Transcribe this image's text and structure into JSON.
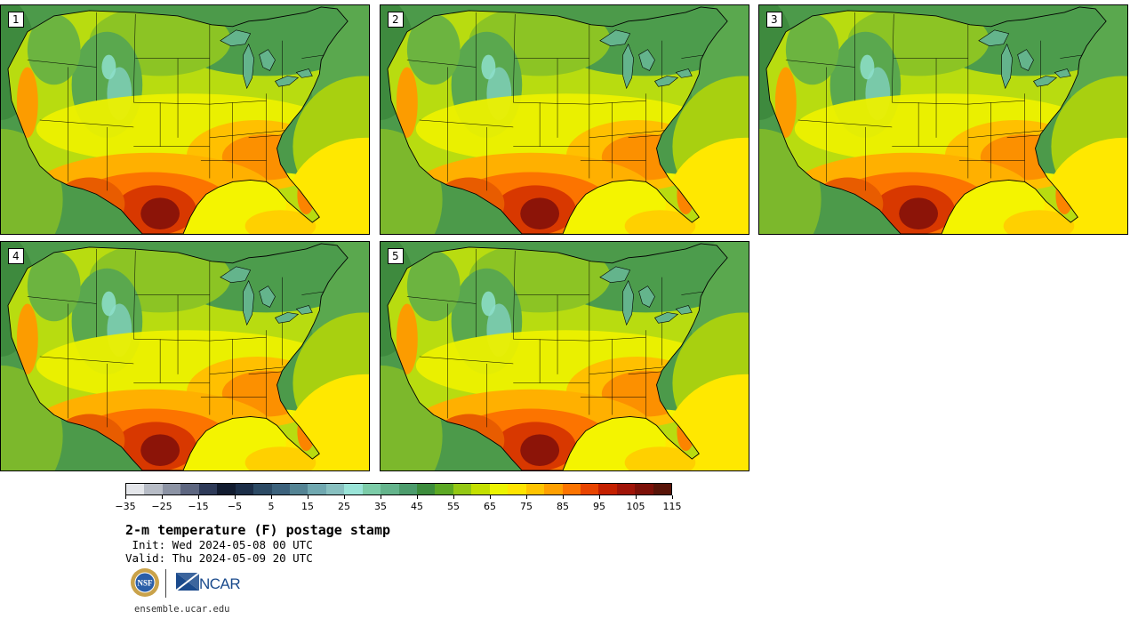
{
  "panels": [
    {
      "label": "1"
    },
    {
      "label": "2"
    },
    {
      "label": "3"
    },
    {
      "label": "4"
    },
    {
      "label": "5"
    }
  ],
  "colorbar": {
    "colors": [
      "#e4e6ea",
      "#b7bcc6",
      "#8c93a4",
      "#5d6680",
      "#2e3a58",
      "#121c30",
      "#1c2e48",
      "#2c4a64",
      "#3c627c",
      "#548494",
      "#70a8b0",
      "#88c0c0",
      "#9ae4d8",
      "#7ccca8",
      "#64b48c",
      "#4c9c6c",
      "#3c8c3c",
      "#5ca824",
      "#94c814",
      "#c4e000",
      "#ecf400",
      "#ffe400",
      "#ffc400",
      "#ffa000",
      "#fc7400",
      "#e84400",
      "#c42000",
      "#a01408",
      "#7c1008",
      "#581408"
    ],
    "ticks": [
      "−35",
      "−25",
      "−15",
      "−5",
      "5",
      "15",
      "25",
      "35",
      "45",
      "55",
      "65",
      "75",
      "85",
      "95",
      "105",
      "115"
    ]
  },
  "title": "2-m temperature (F) postage stamp",
  "init": " Init: Wed 2024-05-08 00 UTC",
  "valid": "Valid: Thu 2024-05-09 20 UTC",
  "logos": {
    "nsf": "NSF",
    "ncar": "NCAR"
  },
  "site": "ensemble.ucar.edu"
}
